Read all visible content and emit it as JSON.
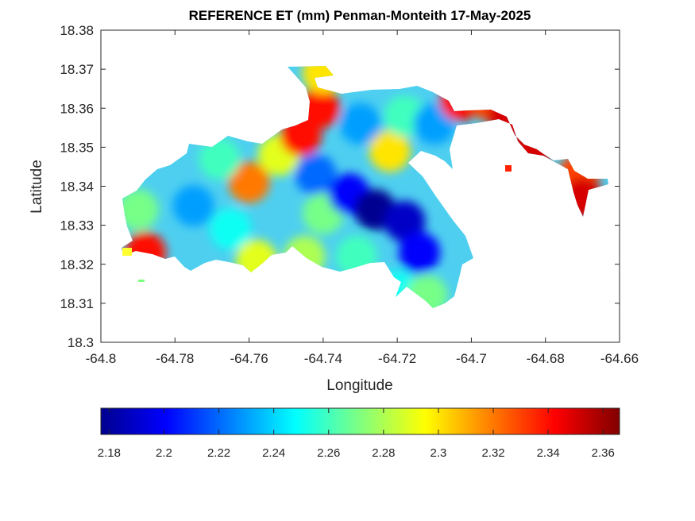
{
  "chart_data": {
    "type": "heatmap",
    "title": "REFERENCE ET (mm) Penman-Monteith 17-May-2025",
    "xlabel": "Longitude",
    "ylabel": "Latitude",
    "xlim": [
      -64.8,
      -64.66
    ],
    "ylim": [
      18.3,
      18.38
    ],
    "xticks": [
      -64.8,
      -64.78,
      -64.76,
      -64.74,
      -64.72,
      -64.7,
      -64.68,
      -64.66
    ],
    "xtick_labels": [
      "-64.8",
      "-64.78",
      "-64.76",
      "-64.74",
      "-64.72",
      "-64.7",
      "-64.68",
      "-64.66"
    ],
    "yticks": [
      18.3,
      18.31,
      18.32,
      18.33,
      18.34,
      18.35,
      18.36,
      18.37,
      18.38
    ],
    "ytick_labels": [
      "18.3",
      "18.31",
      "18.32",
      "18.33",
      "18.34",
      "18.35",
      "18.36",
      "18.37",
      "18.38"
    ],
    "colormap": "jet",
    "colorbar": {
      "location": "bottom",
      "limits": [
        2.177,
        2.366
      ],
      "ticks": [
        2.18,
        2.2,
        2.22,
        2.24,
        2.26,
        2.28,
        2.3,
        2.32,
        2.34,
        2.36
      ],
      "tick_labels": [
        "2.18",
        "2.2",
        "2.22",
        "2.24",
        "2.26",
        "2.28",
        "2.3",
        "2.32",
        "2.34",
        "2.36"
      ]
    },
    "regions": [
      {
        "lon": -64.788,
        "lat": 18.323,
        "value": 2.34
      },
      {
        "lon": -64.79,
        "lat": 18.334,
        "value": 2.27
      },
      {
        "lon": -64.775,
        "lat": 18.335,
        "value": 2.23
      },
      {
        "lon": -64.765,
        "lat": 18.329,
        "value": 2.25
      },
      {
        "lon": -64.758,
        "lat": 18.321,
        "value": 2.29
      },
      {
        "lon": -64.76,
        "lat": 18.341,
        "value": 2.32
      },
      {
        "lon": -64.768,
        "lat": 18.347,
        "value": 2.26
      },
      {
        "lon": -64.752,
        "lat": 18.348,
        "value": 2.29
      },
      {
        "lon": -64.746,
        "lat": 18.353,
        "value": 2.34
      },
      {
        "lon": -64.741,
        "lat": 18.36,
        "value": 2.34
      },
      {
        "lon": -64.74,
        "lat": 18.369,
        "value": 2.3
      },
      {
        "lon": -64.742,
        "lat": 18.343,
        "value": 2.22
      },
      {
        "lon": -64.74,
        "lat": 18.333,
        "value": 2.27
      },
      {
        "lon": -64.745,
        "lat": 18.322,
        "value": 2.28
      },
      {
        "lon": -64.733,
        "lat": 18.338,
        "value": 2.2
      },
      {
        "lon": -64.726,
        "lat": 18.334,
        "value": 2.18
      },
      {
        "lon": -64.718,
        "lat": 18.331,
        "value": 2.19
      },
      {
        "lon": -64.714,
        "lat": 18.323,
        "value": 2.2
      },
      {
        "lon": -64.722,
        "lat": 18.349,
        "value": 2.3
      },
      {
        "lon": -64.73,
        "lat": 18.356,
        "value": 2.23
      },
      {
        "lon": -64.718,
        "lat": 18.358,
        "value": 2.26
      },
      {
        "lon": -64.71,
        "lat": 18.356,
        "value": 2.23
      },
      {
        "lon": -64.72,
        "lat": 18.313,
        "value": 2.25
      },
      {
        "lon": -64.712,
        "lat": 18.312,
        "value": 2.27
      },
      {
        "lon": -64.731,
        "lat": 18.322,
        "value": 2.26
      },
      {
        "lon": -64.703,
        "lat": 18.362,
        "value": 2.34
      },
      {
        "lon": -64.695,
        "lat": 18.362,
        "value": 2.33
      },
      {
        "lon": -64.69,
        "lat": 18.358,
        "value": 2.35
      },
      {
        "lon": -64.684,
        "lat": 18.349,
        "value": 2.35
      },
      {
        "lon": -64.671,
        "lat": 18.343,
        "value": 2.33
      },
      {
        "lon": -64.67,
        "lat": 18.337,
        "value": 2.35
      }
    ]
  }
}
